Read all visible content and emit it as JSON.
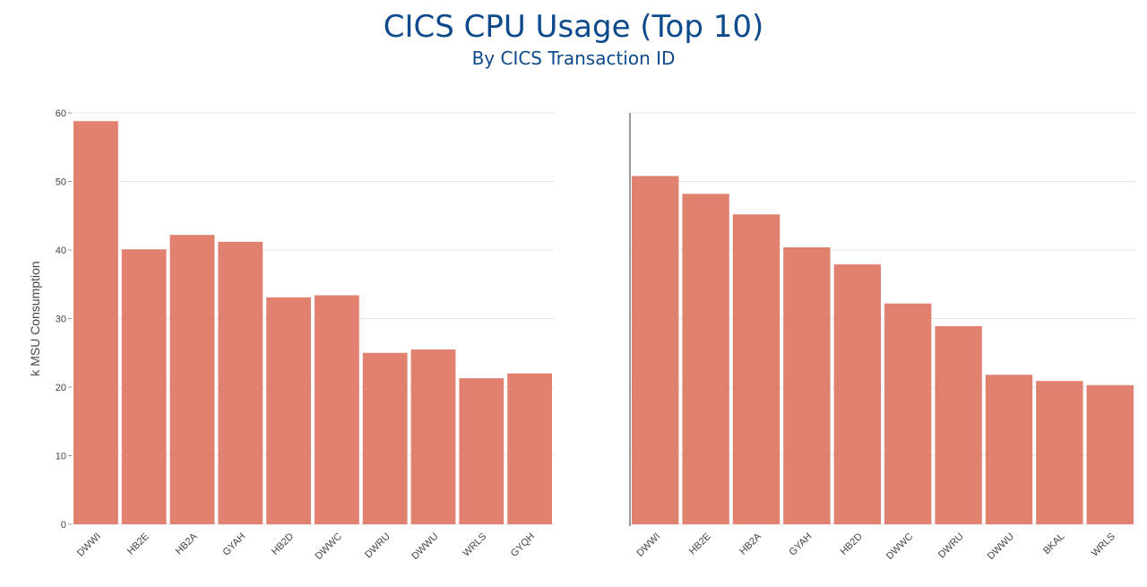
{
  "title": "CICS CPU Usage (Top 10)",
  "subtitle": "By CICS Transaction ID",
  "colors": {
    "bar": "#e0806f",
    "grid": "#e6e6e6",
    "axis": "#333333",
    "title": "#0d4a8c"
  },
  "chart_data": [
    {
      "type": "bar",
      "title": "",
      "xlabel": "",
      "ylabel": "k MSU Consumption",
      "ylim": [
        0,
        60
      ],
      "yticks": [
        0,
        10,
        20,
        30,
        40,
        50,
        60
      ],
      "grid": true,
      "categories": [
        "DWWI",
        "HB2E",
        "HB2A",
        "GYAH",
        "HB2D",
        "DWWC",
        "DWRU",
        "DWWU",
        "WRLS",
        "GYQH"
      ],
      "values": [
        58.8,
        40.1,
        42.2,
        41.2,
        33.1,
        33.4,
        25.0,
        25.5,
        21.3,
        22.0
      ]
    },
    {
      "type": "bar",
      "title": "",
      "xlabel": "",
      "ylabel": "",
      "ylim": [
        0,
        60
      ],
      "grid": true,
      "categories": [
        "DWWI",
        "HB2E",
        "HB2A",
        "GYAH",
        "HB2D",
        "DWWC",
        "DWRU",
        "DWWU",
        "BKAL",
        "WRLS"
      ],
      "values": [
        50.8,
        48.2,
        45.2,
        40.4,
        37.9,
        32.2,
        28.9,
        21.8,
        20.9,
        20.3
      ]
    }
  ]
}
